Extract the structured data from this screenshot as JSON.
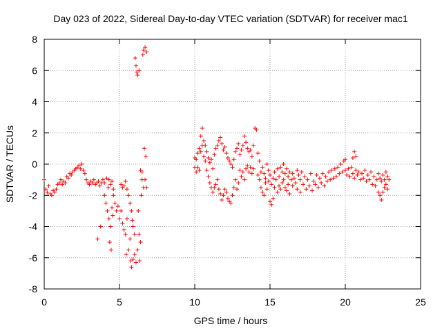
{
  "chart_data": {
    "type": "scatter",
    "title": "Day 023 of 2022, Sidereal Day-to-day VTEC variation (SDTVAR) for receiver mac1",
    "xlabel": "GPS time / hours",
    "ylabel": "SDTVAR / TECUs",
    "xlim": [
      0,
      25
    ],
    "ylim": [
      -8,
      8
    ],
    "xticks": [
      0,
      5,
      10,
      15,
      20,
      25
    ],
    "xtick_labels": [
      "0",
      "5",
      "10",
      "15",
      "20",
      "25"
    ],
    "yticks": [
      -8,
      -6,
      -4,
      -2,
      0,
      2,
      4,
      6,
      8
    ],
    "ytick_labels": [
      "-8",
      "-6",
      "-4",
      "-2",
      "0",
      "2",
      "4",
      "6",
      "8"
    ],
    "grid": true,
    "marker": "+",
    "color": "#ff0000",
    "series": [
      {
        "name": "mac1",
        "points": [
          [
            0.0,
            -1.0
          ],
          [
            0.1,
            -1.6
          ],
          [
            0.2,
            -1.8
          ],
          [
            0.3,
            -1.4
          ],
          [
            0.4,
            -1.9
          ],
          [
            0.5,
            -2.0
          ],
          [
            0.6,
            -1.7
          ],
          [
            0.7,
            -1.8
          ],
          [
            0.8,
            -1.6
          ],
          [
            0.9,
            -1.3
          ],
          [
            1.0,
            -1.2
          ],
          [
            1.1,
            -1.0
          ],
          [
            1.2,
            -1.3
          ],
          [
            1.3,
            -1.1
          ],
          [
            1.4,
            -1.2
          ],
          [
            1.5,
            -0.8
          ],
          [
            1.6,
            -0.9
          ],
          [
            1.7,
            -0.6
          ],
          [
            1.8,
            -0.7
          ],
          [
            1.9,
            -0.5
          ],
          [
            2.0,
            -0.4
          ],
          [
            2.1,
            -0.3
          ],
          [
            2.2,
            -0.2
          ],
          [
            2.3,
            -0.1
          ],
          [
            2.4,
            -0.3
          ],
          [
            2.5,
            0.0
          ],
          [
            2.6,
            -0.4
          ],
          [
            2.7,
            -0.6
          ],
          [
            2.8,
            -1.0
          ],
          [
            2.9,
            -1.2
          ],
          [
            3.0,
            -1.3
          ],
          [
            3.1,
            -1.1
          ],
          [
            3.2,
            -1.2
          ],
          [
            3.3,
            -1.0
          ],
          [
            3.4,
            -1.3
          ],
          [
            3.5,
            -1.2
          ],
          [
            3.55,
            -4.8
          ],
          [
            3.6,
            -1.1
          ],
          [
            3.7,
            -1.4
          ],
          [
            3.75,
            -4.0
          ],
          [
            3.8,
            -1.2
          ],
          [
            3.9,
            -1.0
          ],
          [
            4.0,
            -2.0
          ],
          [
            4.0,
            -1.2
          ],
          [
            4.1,
            -2.5
          ],
          [
            4.15,
            -0.9
          ],
          [
            4.2,
            -3.0
          ],
          [
            4.25,
            -1.5
          ],
          [
            4.3,
            -3.5
          ],
          [
            4.3,
            -1.0
          ],
          [
            4.35,
            -5.0
          ],
          [
            4.4,
            -4.0
          ],
          [
            4.4,
            -1.3
          ],
          [
            4.45,
            -5.5
          ],
          [
            4.5,
            -2.8
          ],
          [
            4.5,
            -1.1
          ],
          [
            4.55,
            -3.3
          ],
          [
            4.6,
            -2.0
          ],
          [
            4.6,
            -1.6
          ],
          [
            4.7,
            -2.5
          ],
          [
            4.8,
            -3.0
          ],
          [
            4.9,
            -2.7
          ],
          [
            5.0,
            -3.5
          ],
          [
            5.1,
            -3.0
          ],
          [
            5.1,
            -1.3
          ],
          [
            5.2,
            -3.8
          ],
          [
            5.2,
            -1.5
          ],
          [
            5.3,
            -4.2
          ],
          [
            5.3,
            -1.4
          ],
          [
            5.4,
            -4.5
          ],
          [
            5.4,
            -1.1
          ],
          [
            5.45,
            -5.8
          ],
          [
            5.5,
            -3.5
          ],
          [
            5.5,
            -1.6
          ],
          [
            5.6,
            -5.5
          ],
          [
            5.6,
            -2.0
          ],
          [
            5.7,
            -4.8
          ],
          [
            5.7,
            -2.5
          ],
          [
            5.75,
            -6.2
          ],
          [
            5.8,
            -6.6
          ],
          [
            5.8,
            -3.0
          ],
          [
            5.85,
            -3.6
          ],
          [
            5.9,
            -6.1
          ],
          [
            5.9,
            -4.0
          ],
          [
            6.0,
            -5.8
          ],
          [
            6.0,
            -4.5
          ],
          [
            6.05,
            6.8
          ],
          [
            6.1,
            6.3
          ],
          [
            6.1,
            -6.3
          ],
          [
            6.15,
            5.9
          ],
          [
            6.2,
            -5.5
          ],
          [
            6.2,
            5.7
          ],
          [
            6.25,
            -3.0
          ],
          [
            6.3,
            -4.5
          ],
          [
            6.3,
            6.0
          ],
          [
            6.35,
            -6.2
          ],
          [
            6.4,
            -5.0
          ],
          [
            6.4,
            -0.4
          ],
          [
            6.45,
            -2.0
          ],
          [
            6.5,
            -1.0
          ],
          [
            6.5,
            -0.5
          ],
          [
            6.55,
            7.0
          ],
          [
            6.6,
            -1.5
          ],
          [
            6.6,
            7.3
          ],
          [
            6.65,
            1.0
          ],
          [
            6.7,
            7.5
          ],
          [
            6.7,
            -1.0
          ],
          [
            6.75,
            0.5
          ],
          [
            6.8,
            7.2
          ],
          [
            6.8,
            -1.5
          ],
          [
            10.0,
            -0.2
          ],
          [
            10.0,
            0.4
          ],
          [
            10.1,
            -0.5
          ],
          [
            10.1,
            0.3
          ],
          [
            10.2,
            0.7
          ],
          [
            10.2,
            -0.2
          ],
          [
            10.3,
            1.0
          ],
          [
            10.3,
            -0.4
          ],
          [
            10.4,
            1.8
          ],
          [
            10.4,
            0.8
          ],
          [
            10.5,
            2.3
          ],
          [
            10.5,
            1.2
          ],
          [
            10.6,
            1.5
          ],
          [
            10.6,
            0.5
          ],
          [
            10.7,
            1.2
          ],
          [
            10.7,
            0.2
          ],
          [
            10.8,
            0.8
          ],
          [
            10.8,
            -0.4
          ],
          [
            10.9,
            -0.8
          ],
          [
            10.9,
            0.4
          ],
          [
            11.0,
            -1.2
          ],
          [
            11.0,
            0.1
          ],
          [
            11.1,
            -1.5
          ],
          [
            11.1,
            0.3
          ],
          [
            11.2,
            -1.8
          ],
          [
            11.2,
            -0.3
          ],
          [
            11.3,
            -1.5
          ],
          [
            11.3,
            0.6
          ],
          [
            11.4,
            -1.3
          ],
          [
            11.4,
            1.0
          ],
          [
            11.5,
            -1.0
          ],
          [
            11.5,
            1.2
          ],
          [
            11.6,
            -1.6
          ],
          [
            11.6,
            1.5
          ],
          [
            11.7,
            -1.9
          ],
          [
            11.7,
            1.7
          ],
          [
            11.8,
            -2.3
          ],
          [
            11.8,
            1.3
          ],
          [
            11.9,
            -2.0
          ],
          [
            11.9,
            0.9
          ],
          [
            12.0,
            -1.6
          ],
          [
            12.0,
            1.1
          ],
          [
            12.1,
            -1.8
          ],
          [
            12.1,
            0.7
          ],
          [
            12.2,
            -2.2
          ],
          [
            12.2,
            0.4
          ],
          [
            12.3,
            -2.4
          ],
          [
            12.3,
            0.2
          ],
          [
            12.4,
            -2.5
          ],
          [
            12.4,
            0.0
          ],
          [
            12.5,
            -2.0
          ],
          [
            12.5,
            -0.2
          ],
          [
            12.6,
            -1.5
          ],
          [
            12.6,
            0.3
          ],
          [
            12.7,
            -1.0
          ],
          [
            12.7,
            0.8
          ],
          [
            12.8,
            -1.6
          ],
          [
            12.8,
            1.0
          ],
          [
            12.9,
            -1.2
          ],
          [
            12.9,
            1.3
          ],
          [
            13.0,
            -0.4
          ],
          [
            13.0,
            0.6
          ],
          [
            13.1,
            -0.8
          ],
          [
            13.1,
            0.9
          ],
          [
            13.2,
            -0.5
          ],
          [
            13.2,
            1.2
          ],
          [
            13.3,
            -1.0
          ],
          [
            13.3,
            1.8
          ],
          [
            13.4,
            -0.3
          ],
          [
            13.4,
            1.4
          ],
          [
            13.5,
            -0.1
          ],
          [
            13.5,
            1.0
          ],
          [
            13.6,
            -0.5
          ],
          [
            13.6,
            0.8
          ],
          [
            13.7,
            -0.2
          ],
          [
            13.7,
            0.9
          ],
          [
            13.8,
            0.5
          ],
          [
            13.8,
            -0.6
          ],
          [
            13.9,
            1.2
          ],
          [
            13.9,
            -0.3
          ],
          [
            14.0,
            2.3
          ],
          [
            14.1,
            2.2
          ],
          [
            14.2,
            0.7
          ],
          [
            14.2,
            -0.7
          ],
          [
            14.3,
            0.2
          ],
          [
            14.3,
            -1.0
          ],
          [
            14.4,
            -0.5
          ],
          [
            14.4,
            -1.5
          ],
          [
            14.5,
            -0.2
          ],
          [
            14.5,
            -1.8
          ],
          [
            14.6,
            -0.6
          ],
          [
            14.6,
            -2.0
          ],
          [
            14.7,
            -0.9
          ],
          [
            14.7,
            -1.2
          ],
          [
            14.8,
            0.0
          ],
          [
            14.8,
            -1.6
          ],
          [
            14.9,
            -0.4
          ],
          [
            14.9,
            -1.1
          ],
          [
            15.0,
            -0.7
          ],
          [
            15.0,
            -2.4
          ],
          [
            15.1,
            -1.3
          ],
          [
            15.1,
            -2.6
          ],
          [
            15.2,
            -0.9
          ],
          [
            15.2,
            -2.2
          ],
          [
            15.3,
            -0.5
          ],
          [
            15.3,
            -1.5
          ],
          [
            15.4,
            -1.0
          ],
          [
            15.5,
            -0.3
          ],
          [
            15.5,
            -1.8
          ],
          [
            15.6,
            -0.8
          ],
          [
            15.6,
            -1.4
          ],
          [
            15.7,
            -0.2
          ],
          [
            15.7,
            -1.6
          ],
          [
            15.8,
            -0.5
          ],
          [
            15.8,
            -1.2
          ],
          [
            15.9,
            0.0
          ],
          [
            15.9,
            -1.0
          ],
          [
            16.0,
            -0.6
          ],
          [
            16.0,
            -1.5
          ],
          [
            16.1,
            -0.3
          ],
          [
            16.1,
            -1.7
          ],
          [
            16.2,
            -0.8
          ],
          [
            16.2,
            -1.3
          ],
          [
            16.3,
            -0.5
          ],
          [
            16.3,
            -1.9
          ],
          [
            16.4,
            -1.0
          ],
          [
            16.5,
            -0.6
          ],
          [
            16.5,
            -1.4
          ],
          [
            16.6,
            -0.9
          ],
          [
            16.7,
            -1.2
          ],
          [
            16.8,
            -0.4
          ],
          [
            16.8,
            -1.6
          ],
          [
            16.9,
            -0.7
          ],
          [
            17.0,
            -1.0
          ],
          [
            17.0,
            -1.8
          ],
          [
            17.1,
            -0.5
          ],
          [
            17.2,
            -1.3
          ],
          [
            17.3,
            -0.8
          ],
          [
            17.4,
            -1.6
          ],
          [
            17.5,
            -1.0
          ],
          [
            17.6,
            -1.4
          ],
          [
            17.7,
            -0.6
          ],
          [
            17.8,
            -1.7
          ],
          [
            17.9,
            -1.1
          ],
          [
            18.0,
            -1.3
          ],
          [
            18.1,
            -0.7
          ],
          [
            18.2,
            -1.5
          ],
          [
            18.3,
            -0.9
          ],
          [
            18.4,
            -1.2
          ],
          [
            18.5,
            -0.6
          ],
          [
            18.6,
            -1.4
          ],
          [
            18.7,
            -0.8
          ],
          [
            18.8,
            -1.1
          ],
          [
            18.9,
            -0.5
          ],
          [
            19.0,
            -1.0
          ],
          [
            19.1,
            -0.4
          ],
          [
            19.2,
            -0.9
          ],
          [
            19.3,
            -0.3
          ],
          [
            19.4,
            -0.8
          ],
          [
            19.5,
            -0.2
          ],
          [
            19.6,
            -0.6
          ],
          [
            19.7,
            0.0
          ],
          [
            19.8,
            -0.5
          ],
          [
            19.9,
            0.2
          ],
          [
            20.0,
            -0.4
          ],
          [
            20.0,
            0.3
          ],
          [
            20.1,
            -0.7
          ],
          [
            20.2,
            -0.3
          ],
          [
            20.3,
            -0.8
          ],
          [
            20.4,
            -0.2
          ],
          [
            20.5,
            0.4
          ],
          [
            20.5,
            -0.6
          ],
          [
            20.6,
            0.8
          ],
          [
            20.6,
            -0.9
          ],
          [
            20.7,
            0.5
          ],
          [
            20.7,
            -0.4
          ],
          [
            20.8,
            -0.7
          ],
          [
            20.9,
            -0.5
          ],
          [
            21.0,
            -1.0
          ],
          [
            21.1,
            -0.6
          ],
          [
            21.2,
            -0.9
          ],
          [
            21.3,
            -0.4
          ],
          [
            21.4,
            -1.1
          ],
          [
            21.5,
            -0.7
          ],
          [
            21.6,
            -1.0
          ],
          [
            21.7,
            -0.5
          ],
          [
            21.8,
            -1.3
          ],
          [
            21.9,
            -0.8
          ],
          [
            22.0,
            -1.4
          ],
          [
            22.1,
            -1.0
          ],
          [
            22.2,
            -1.8
          ],
          [
            22.2,
            -0.6
          ],
          [
            22.3,
            -2.0
          ],
          [
            22.3,
            -0.9
          ],
          [
            22.4,
            -2.3
          ],
          [
            22.4,
            -1.1
          ],
          [
            22.5,
            -1.8
          ],
          [
            22.5,
            -0.7
          ],
          [
            22.6,
            -1.5
          ],
          [
            22.6,
            -1.0
          ],
          [
            22.7,
            -1.3
          ],
          [
            22.7,
            -0.5
          ],
          [
            22.8,
            -1.6
          ],
          [
            22.8,
            -0.8
          ],
          [
            22.9,
            -1.0
          ]
        ]
      }
    ]
  }
}
